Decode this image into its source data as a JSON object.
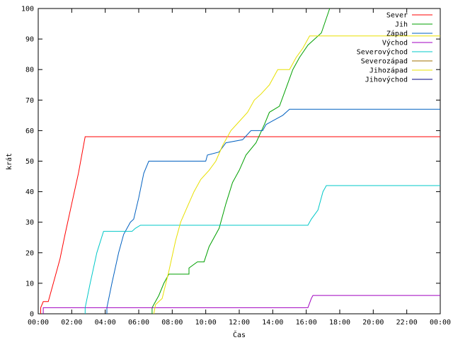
{
  "chart_data": {
    "type": "line",
    "xlabel": "Čas",
    "ylabel": "krát",
    "xlim": [
      0,
      24
    ],
    "ylim": [
      0,
      100
    ],
    "grid": false,
    "legend_position": "top-right",
    "x_ticks": [
      {
        "v": 0,
        "label": "00:00"
      },
      {
        "v": 2,
        "label": "02:00"
      },
      {
        "v": 4,
        "label": "04:00"
      },
      {
        "v": 6,
        "label": "06:00"
      },
      {
        "v": 8,
        "label": "08:00"
      },
      {
        "v": 10,
        "label": "10:00"
      },
      {
        "v": 12,
        "label": "12:00"
      },
      {
        "v": 14,
        "label": "14:00"
      },
      {
        "v": 16,
        "label": "16:00"
      },
      {
        "v": 18,
        "label": "18:00"
      },
      {
        "v": 20,
        "label": "20:00"
      },
      {
        "v": 22,
        "label": "22:00"
      },
      {
        "v": 24,
        "label": "00:00"
      }
    ],
    "y_ticks": [
      {
        "v": 0,
        "label": "0"
      },
      {
        "v": 10,
        "label": "10"
      },
      {
        "v": 20,
        "label": "20"
      },
      {
        "v": 30,
        "label": "30"
      },
      {
        "v": 40,
        "label": "40"
      },
      {
        "v": 50,
        "label": "50"
      },
      {
        "v": 60,
        "label": "60"
      },
      {
        "v": 70,
        "label": "70"
      },
      {
        "v": 80,
        "label": "80"
      },
      {
        "v": 90,
        "label": "90"
      },
      {
        "v": 100,
        "label": "100"
      }
    ],
    "series": [
      {
        "name": "Sever",
        "color": "#ff0000",
        "points": [
          [
            0.15,
            0
          ],
          [
            0.15,
            2
          ],
          [
            0.3,
            4
          ],
          [
            0.6,
            4
          ],
          [
            1.0,
            12
          ],
          [
            1.3,
            18
          ],
          [
            1.6,
            26
          ],
          [
            2.0,
            36
          ],
          [
            2.4,
            46
          ],
          [
            2.8,
            58
          ],
          [
            24,
            58
          ]
        ]
      },
      {
        "name": "Jih",
        "color": "#00a000",
        "points": [
          [
            6.8,
            0
          ],
          [
            6.8,
            2
          ],
          [
            7.2,
            6
          ],
          [
            7.5,
            10
          ],
          [
            7.8,
            13
          ],
          [
            9.0,
            13
          ],
          [
            9.0,
            15
          ],
          [
            9.5,
            17
          ],
          [
            9.9,
            17
          ],
          [
            10.2,
            22
          ],
          [
            10.8,
            28
          ],
          [
            11.2,
            36
          ],
          [
            11.6,
            43
          ],
          [
            12.0,
            47
          ],
          [
            12.4,
            52
          ],
          [
            13.0,
            56
          ],
          [
            13.5,
            62
          ],
          [
            13.8,
            66
          ],
          [
            14.4,
            68
          ],
          [
            14.8,
            74
          ],
          [
            15.2,
            80
          ],
          [
            15.6,
            84
          ],
          [
            16.1,
            88
          ],
          [
            16.5,
            90
          ],
          [
            16.9,
            92
          ],
          [
            17.4,
            100
          ]
        ]
      },
      {
        "name": "Západ",
        "color": "#0060c0",
        "points": [
          [
            4.1,
            0
          ],
          [
            4.1,
            2
          ],
          [
            4.4,
            10
          ],
          [
            4.8,
            20
          ],
          [
            5.1,
            26
          ],
          [
            5.5,
            30
          ],
          [
            5.7,
            31
          ],
          [
            6.0,
            38
          ],
          [
            6.3,
            46
          ],
          [
            6.6,
            50
          ],
          [
            10.0,
            50
          ],
          [
            10.1,
            52
          ],
          [
            10.8,
            53
          ],
          [
            11.2,
            56
          ],
          [
            12.2,
            57
          ],
          [
            12.7,
            60
          ],
          [
            13.4,
            60
          ],
          [
            13.6,
            62
          ],
          [
            14.6,
            65
          ],
          [
            15.0,
            67
          ],
          [
            24,
            67
          ]
        ]
      },
      {
        "name": "Východ",
        "color": "#a000c0",
        "points": [
          [
            0.3,
            0
          ],
          [
            0.3,
            2
          ],
          [
            16.1,
            2
          ],
          [
            16.3,
            5
          ],
          [
            16.4,
            6
          ],
          [
            24,
            6
          ]
        ]
      },
      {
        "name": "Severovýchod",
        "color": "#00c8c8",
        "points": [
          [
            2.8,
            0
          ],
          [
            2.8,
            2
          ],
          [
            3.1,
            10
          ],
          [
            3.5,
            20
          ],
          [
            3.9,
            27
          ],
          [
            5.6,
            27
          ],
          [
            5.8,
            28
          ],
          [
            6.1,
            29
          ],
          [
            16.1,
            29
          ],
          [
            16.3,
            31
          ],
          [
            16.7,
            34
          ],
          [
            17.0,
            40
          ],
          [
            17.2,
            42
          ],
          [
            24,
            42
          ]
        ]
      },
      {
        "name": "Severozápad",
        "color": "#a07000",
        "points": []
      },
      {
        "name": "Jihozápad",
        "color": "#e8e000",
        "points": [
          [
            6.9,
            0
          ],
          [
            7.0,
            3
          ],
          [
            7.4,
            5
          ],
          [
            7.8,
            14
          ],
          [
            8.2,
            24
          ],
          [
            8.5,
            30
          ],
          [
            8.9,
            35
          ],
          [
            9.3,
            40
          ],
          [
            9.7,
            44
          ],
          [
            10.2,
            47
          ],
          [
            10.6,
            50
          ],
          [
            11.0,
            55
          ],
          [
            11.5,
            60
          ],
          [
            12.0,
            63
          ],
          [
            12.5,
            66
          ],
          [
            12.9,
            70
          ],
          [
            13.3,
            72
          ],
          [
            13.8,
            75
          ],
          [
            14.3,
            80
          ],
          [
            15.0,
            80
          ],
          [
            15.4,
            84
          ],
          [
            15.8,
            87
          ],
          [
            16.2,
            91
          ],
          [
            24,
            91
          ]
        ]
      },
      {
        "name": "Jihovýchod",
        "color": "#000080",
        "points": []
      }
    ]
  }
}
